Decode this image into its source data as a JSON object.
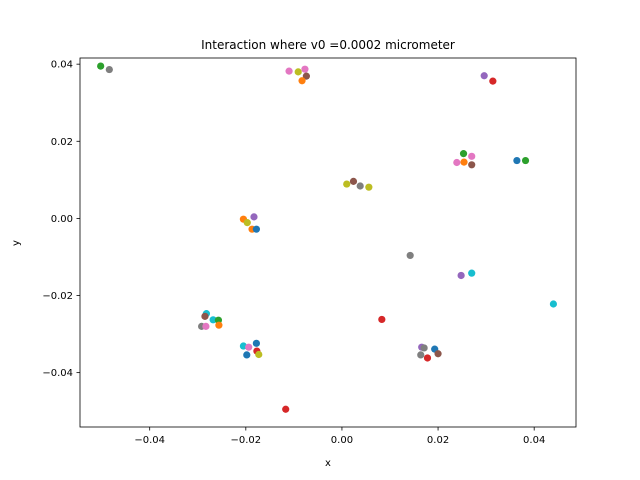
{
  "chart_data": {
    "type": "scatter",
    "title": "Interaction where v0 =0.0002 micrometer",
    "xlabel": "x",
    "ylabel": "y",
    "xlim": [
      -0.0545,
      0.0487
    ],
    "ylim": [
      -0.0541,
      0.0416
    ],
    "xticks": [
      -0.04,
      -0.02,
      0.0,
      0.02,
      0.04
    ],
    "xtick_labels": [
      "−0.04",
      "−0.02",
      "0.00",
      "0.02",
      "0.04"
    ],
    "yticks": [
      -0.04,
      -0.02,
      0.0,
      0.02,
      0.04
    ],
    "ytick_labels": [
      "−0.04",
      "−0.02",
      "0.00",
      "0.02",
      "0.04"
    ],
    "grid": false,
    "legend": "none",
    "points": [
      {
        "x": -0.0502,
        "y": 0.0395,
        "color": "#2ca02c"
      },
      {
        "x": -0.0484,
        "y": 0.0386,
        "color": "#7f7f7f"
      },
      {
        "x": -0.011,
        "y": 0.0382,
        "color": "#e377c2"
      },
      {
        "x": -0.0091,
        "y": 0.038,
        "color": "#bcbd22"
      },
      {
        "x": -0.0077,
        "y": 0.0387,
        "color": "#e377c2"
      },
      {
        "x": -0.0074,
        "y": 0.0369,
        "color": "#8c564b"
      },
      {
        "x": -0.0083,
        "y": 0.0357,
        "color": "#ff7f0e"
      },
      {
        "x": 0.0296,
        "y": 0.037,
        "color": "#9467bd"
      },
      {
        "x": 0.0314,
        "y": 0.0356,
        "color": "#d62728"
      },
      {
        "x": 0.0253,
        "y": 0.0168,
        "color": "#2ca02c"
      },
      {
        "x": 0.027,
        "y": 0.0161,
        "color": "#e377c2"
      },
      {
        "x": 0.0239,
        "y": 0.0145,
        "color": "#e377c2"
      },
      {
        "x": 0.0254,
        "y": 0.0146,
        "color": "#ff7f0e"
      },
      {
        "x": 0.027,
        "y": 0.0139,
        "color": "#8c564b"
      },
      {
        "x": 0.0364,
        "y": 0.015,
        "color": "#1f77b4"
      },
      {
        "x": 0.0382,
        "y": 0.015,
        "color": "#2ca02c"
      },
      {
        "x": 0.001,
        "y": 0.0089,
        "color": "#bcbd22"
      },
      {
        "x": 0.0024,
        "y": 0.0096,
        "color": "#8c564b"
      },
      {
        "x": 0.0038,
        "y": 0.0084,
        "color": "#7f7f7f"
      },
      {
        "x": 0.0056,
        "y": 0.0081,
        "color": "#bcbd22"
      },
      {
        "x": -0.0205,
        "y": -0.0002,
        "color": "#ff7f0e"
      },
      {
        "x": -0.0197,
        "y": -0.0011,
        "color": "#bcbd22"
      },
      {
        "x": -0.0183,
        "y": 0.0004,
        "color": "#9467bd"
      },
      {
        "x": -0.0187,
        "y": -0.0028,
        "color": "#ff7f0e"
      },
      {
        "x": -0.0178,
        "y": -0.0028,
        "color": "#1f77b4"
      },
      {
        "x": 0.0142,
        "y": -0.0096,
        "color": "#7f7f7f"
      },
      {
        "x": 0.0248,
        "y": -0.0148,
        "color": "#9467bd"
      },
      {
        "x": 0.027,
        "y": -0.0142,
        "color": "#17becf"
      },
      {
        "x": 0.044,
        "y": -0.0222,
        "color": "#17becf"
      },
      {
        "x": 0.0083,
        "y": -0.0262,
        "color": "#d62728"
      },
      {
        "x": -0.0282,
        "y": -0.0247,
        "color": "#17becf"
      },
      {
        "x": -0.0285,
        "y": -0.0254,
        "color": "#8c564b"
      },
      {
        "x": -0.0268,
        "y": -0.0263,
        "color": "#17becf"
      },
      {
        "x": -0.0257,
        "y": -0.0264,
        "color": "#2ca02c"
      },
      {
        "x": -0.0256,
        "y": -0.0277,
        "color": "#ff7f0e"
      },
      {
        "x": -0.0292,
        "y": -0.028,
        "color": "#7f7f7f"
      },
      {
        "x": -0.0283,
        "y": -0.028,
        "color": "#e377c2"
      },
      {
        "x": -0.0205,
        "y": -0.0331,
        "color": "#17becf"
      },
      {
        "x": -0.0178,
        "y": -0.0324,
        "color": "#1f77b4"
      },
      {
        "x": -0.0194,
        "y": -0.0334,
        "color": "#e377c2"
      },
      {
        "x": -0.0177,
        "y": -0.0344,
        "color": "#d62728"
      },
      {
        "x": -0.0198,
        "y": -0.0354,
        "color": "#1f77b4"
      },
      {
        "x": -0.0173,
        "y": -0.0353,
        "color": "#bcbd22"
      },
      {
        "x": 0.0166,
        "y": -0.0334,
        "color": "#9467bd"
      },
      {
        "x": 0.0171,
        "y": -0.0336,
        "color": "#7f7f7f"
      },
      {
        "x": 0.0193,
        "y": -0.0339,
        "color": "#1f77b4"
      },
      {
        "x": 0.0164,
        "y": -0.0354,
        "color": "#7f7f7f"
      },
      {
        "x": 0.02,
        "y": -0.0351,
        "color": "#8c564b"
      },
      {
        "x": 0.0178,
        "y": -0.0362,
        "color": "#d62728"
      },
      {
        "x": -0.0117,
        "y": -0.0495,
        "color": "#d62728"
      }
    ]
  }
}
